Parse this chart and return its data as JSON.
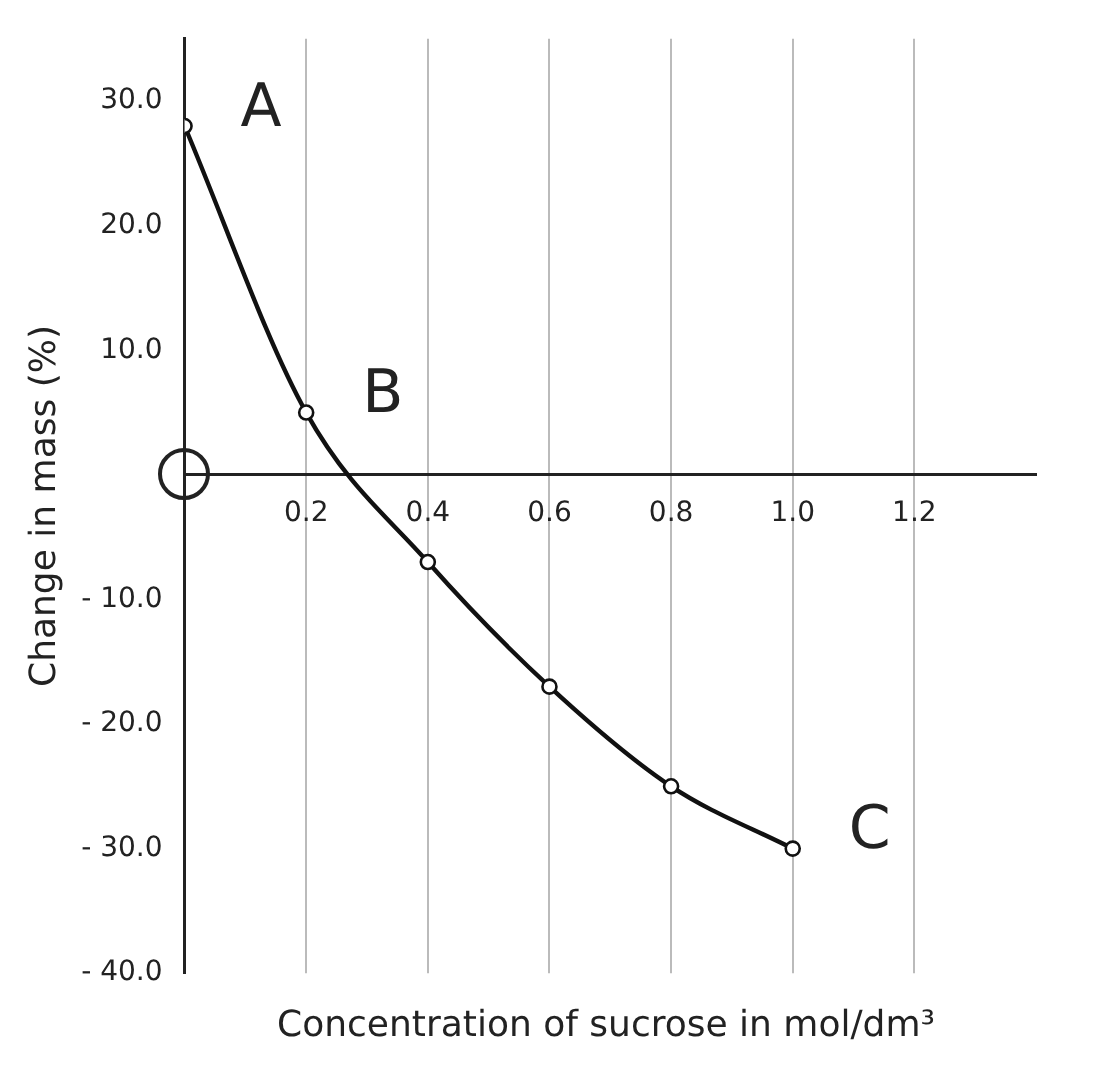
{
  "chart_data": {
    "type": "line",
    "xlabel": "Concentration of sucrose in mol/dm³",
    "ylabel": "Change in mass (%)",
    "x": [
      0,
      0.2,
      0.4,
      0.6,
      0.8,
      1.0
    ],
    "series": [
      {
        "color": "#111111",
        "values": [
          28,
          5,
          -7,
          -17,
          -25,
          -30
        ]
      }
    ],
    "xlim": [
      0,
      1.4
    ],
    "xticks": [
      0.2,
      0.4,
      0.6,
      0.8,
      {
        "value": 1,
        "label": "1.0"
      },
      1.2
    ],
    "ylim": [
      -40,
      35
    ],
    "yticks": [
      {
        "value": -40,
        "label": "- 40.0"
      },
      {
        "value": -30,
        "label": "- 30.0"
      },
      {
        "value": -20,
        "label": "- 20.0"
      },
      {
        "value": -10,
        "label": "- 10.0"
      },
      {
        "value": 10,
        "label": "10.0"
      },
      {
        "value": 20,
        "label": "20.0"
      },
      {
        "value": 30,
        "label": "30.0"
      }
    ],
    "annotations": [
      {
        "text": "A",
        "x": 0,
        "y": 28
      },
      {
        "text": "B",
        "x": 0.2,
        "y": 5
      },
      {
        "text": "C",
        "x": 1.0,
        "y": -30
      }
    ],
    "grid": "x",
    "marker": "circle",
    "line_style": "solid",
    "legend": false
  }
}
